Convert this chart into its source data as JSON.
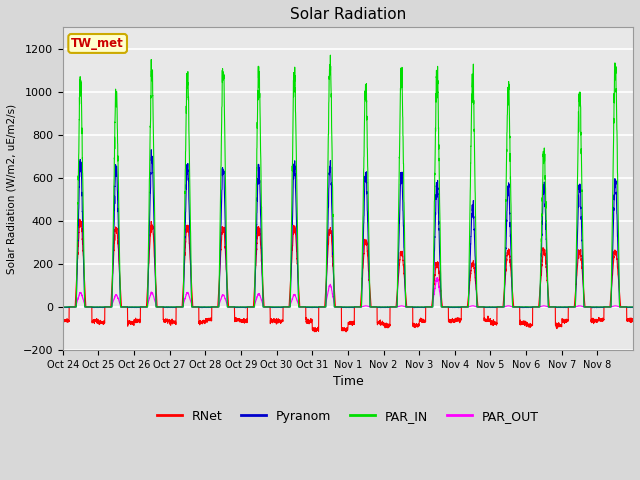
{
  "title": "Solar Radiation",
  "ylabel": "Solar Radiation (W/m2, uE/m2/s)",
  "xlabel": "Time",
  "ylim": [
    -200,
    1300
  ],
  "yticks": [
    -200,
    0,
    200,
    400,
    600,
    800,
    1000,
    1200
  ],
  "xlabels": [
    "Oct 24",
    "Oct 25",
    "Oct 26",
    "Oct 27",
    "Oct 28",
    "Oct 29",
    "Oct 30",
    "Oct 31",
    "Nov 1",
    "Nov 2",
    "Nov 3",
    "Nov 4",
    "Nov 5",
    "Nov 6",
    "Nov 7",
    "Nov 8"
  ],
  "colors": {
    "RNet": "#ff0000",
    "Pyranom": "#0000cc",
    "PAR_IN": "#00dd00",
    "PAR_OUT": "#ff00ff"
  },
  "site_label": "TW_met",
  "site_label_color": "#cc0000",
  "site_label_bg": "#ffffcc",
  "site_label_border": "#ccaa00",
  "background_color": "#d8d8d8",
  "plot_bg_color": "#e8e8e8",
  "grid_color": "#ffffff",
  "n_days": 16,
  "points_per_day": 288,
  "peak_PAR_IN": [
    1030,
    980,
    1070,
    1050,
    1085,
    1080,
    1050,
    1110,
    1000,
    1075,
    1065,
    1050,
    990,
    700,
    980,
    1095
  ],
  "peak_Pyranom": [
    660,
    640,
    680,
    640,
    635,
    640,
    640,
    645,
    605,
    605,
    560,
    460,
    545,
    550,
    560,
    575
  ],
  "peak_RNet": [
    390,
    360,
    370,
    365,
    355,
    360,
    355,
    350,
    300,
    250,
    200,
    200,
    255,
    255,
    255,
    255
  ],
  "peak_PAR_OUT": [
    65,
    55,
    65,
    65,
    55,
    60,
    55,
    100,
    5,
    5,
    130,
    5,
    5,
    5,
    5,
    5
  ],
  "night_RNet": [
    -65,
    -75,
    -65,
    -70,
    -60,
    -65,
    -65,
    -105,
    -75,
    -85,
    -65,
    -60,
    -75,
    -85,
    -65,
    -60
  ]
}
